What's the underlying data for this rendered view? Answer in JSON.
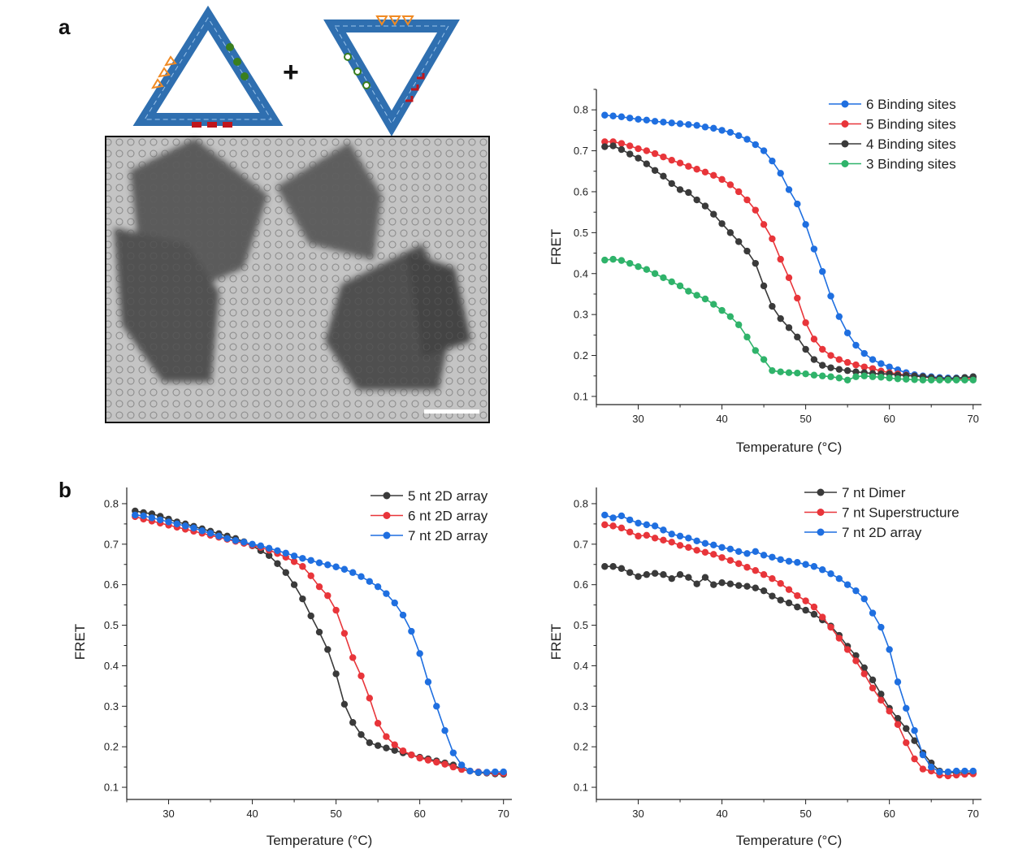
{
  "figure": {
    "panel_a_label": "a",
    "panel_b_label": "b",
    "plus_sign": "+"
  },
  "micrograph": {
    "has_scale_bar": true
  },
  "colors": {
    "blue": "#1f6fe0",
    "red": "#e8353a",
    "black": "#3a3a3a",
    "green": "#2fb36a",
    "origami_blue": "#2f6fb0",
    "origami_orange": "#f08a24",
    "origami_green": "#3a7f1e",
    "origami_red": "#c0161c"
  },
  "chart_data": [
    {
      "type": "line",
      "xlabel": "Temperature (°C)",
      "ylabel": "FRET",
      "xlim": [
        25,
        71
      ],
      "ylim": [
        0.08,
        0.85
      ],
      "xticks": [
        30,
        40,
        50,
        60,
        70
      ],
      "yticks": [
        0.1,
        0.2,
        0.3,
        0.4,
        0.5,
        0.6,
        0.7,
        0.8
      ],
      "legend_position": "top-right",
      "grid": false,
      "series": [
        {
          "name": "6 Binding sites",
          "color": "#1f6fe0",
          "x": [
            26,
            27,
            28,
            29,
            30,
            31,
            32,
            33,
            34,
            35,
            36,
            37,
            38,
            39,
            40,
            41,
            42,
            43,
            44,
            45,
            46,
            47,
            48,
            49,
            50,
            51,
            52,
            53,
            54,
            55,
            56,
            57,
            58,
            59,
            60,
            61,
            62,
            63,
            64,
            65,
            66,
            67,
            68,
            69,
            70
          ],
          "y": [
            0.787,
            0.785,
            0.783,
            0.78,
            0.777,
            0.775,
            0.772,
            0.77,
            0.768,
            0.766,
            0.764,
            0.762,
            0.758,
            0.755,
            0.75,
            0.745,
            0.737,
            0.728,
            0.715,
            0.7,
            0.675,
            0.645,
            0.605,
            0.57,
            0.52,
            0.46,
            0.405,
            0.345,
            0.295,
            0.255,
            0.225,
            0.205,
            0.19,
            0.18,
            0.172,
            0.165,
            0.158,
            0.153,
            0.15,
            0.148,
            0.146,
            0.145,
            0.145,
            0.146,
            0.148
          ]
        },
        {
          "name": "5 Binding sites",
          "color": "#e8353a",
          "x": [
            26,
            27,
            28,
            29,
            30,
            31,
            32,
            33,
            34,
            35,
            36,
            37,
            38,
            39,
            40,
            41,
            42,
            43,
            44,
            45,
            46,
            47,
            48,
            49,
            50,
            51,
            52,
            53,
            54,
            55,
            56,
            57,
            58,
            59,
            60,
            61,
            62,
            63,
            64,
            65,
            66,
            67,
            68,
            69,
            70
          ],
          "y": [
            0.722,
            0.722,
            0.718,
            0.712,
            0.705,
            0.7,
            0.693,
            0.685,
            0.677,
            0.67,
            0.662,
            0.655,
            0.648,
            0.64,
            0.63,
            0.617,
            0.6,
            0.58,
            0.555,
            0.52,
            0.485,
            0.435,
            0.39,
            0.34,
            0.28,
            0.24,
            0.215,
            0.2,
            0.19,
            0.183,
            0.177,
            0.172,
            0.168,
            0.162,
            0.158,
            0.155,
            0.152,
            0.15,
            0.148,
            0.145,
            0.143,
            0.142,
            0.143,
            0.144,
            0.143
          ]
        },
        {
          "name": "4 Binding sites",
          "color": "#3a3a3a",
          "x": [
            26,
            27,
            28,
            29,
            30,
            31,
            32,
            33,
            34,
            35,
            36,
            37,
            38,
            39,
            40,
            41,
            42,
            43,
            44,
            45,
            46,
            47,
            48,
            49,
            50,
            51,
            52,
            53,
            54,
            55,
            56,
            57,
            58,
            59,
            60,
            61,
            62,
            63,
            64,
            65,
            66,
            67,
            68,
            69,
            70
          ],
          "y": [
            0.71,
            0.712,
            0.703,
            0.692,
            0.682,
            0.668,
            0.652,
            0.638,
            0.62,
            0.605,
            0.598,
            0.58,
            0.565,
            0.545,
            0.522,
            0.5,
            0.478,
            0.455,
            0.425,
            0.37,
            0.32,
            0.29,
            0.268,
            0.245,
            0.215,
            0.19,
            0.176,
            0.17,
            0.166,
            0.163,
            0.16,
            0.158,
            0.156,
            0.155,
            0.155,
            0.152,
            0.151,
            0.15,
            0.148,
            0.146,
            0.144,
            0.143,
            0.144,
            0.146,
            0.148
          ]
        },
        {
          "name": "3 Binding sites",
          "color": "#2fb36a",
          "x": [
            26,
            27,
            28,
            29,
            30,
            31,
            32,
            33,
            34,
            35,
            36,
            37,
            38,
            39,
            40,
            41,
            42,
            43,
            44,
            45,
            46,
            47,
            48,
            49,
            50,
            51,
            52,
            53,
            54,
            55,
            56,
            57,
            58,
            59,
            60,
            61,
            62,
            63,
            64,
            65,
            66,
            67,
            68,
            69,
            70
          ],
          "y": [
            0.433,
            0.435,
            0.432,
            0.425,
            0.417,
            0.41,
            0.4,
            0.39,
            0.38,
            0.37,
            0.357,
            0.347,
            0.338,
            0.325,
            0.31,
            0.295,
            0.275,
            0.245,
            0.212,
            0.19,
            0.163,
            0.16,
            0.158,
            0.157,
            0.155,
            0.152,
            0.15,
            0.148,
            0.145,
            0.14,
            0.148,
            0.15,
            0.148,
            0.147,
            0.145,
            0.143,
            0.142,
            0.141,
            0.14,
            0.14,
            0.14,
            0.14,
            0.14,
            0.14,
            0.14
          ]
        }
      ]
    },
    {
      "type": "line",
      "xlabel": "Temperature (°C)",
      "ylabel": "FRET",
      "xlim": [
        25,
        71
      ],
      "ylim": [
        0.07,
        0.84
      ],
      "xticks": [
        30,
        40,
        50,
        60,
        70
      ],
      "yticks": [
        0.1,
        0.2,
        0.3,
        0.4,
        0.5,
        0.6,
        0.7,
        0.8
      ],
      "legend_position": "top-right",
      "grid": false,
      "series": [
        {
          "name": "5 nt 2D array",
          "color": "#3a3a3a",
          "x": [
            26,
            27,
            28,
            29,
            30,
            31,
            32,
            33,
            34,
            35,
            36,
            37,
            38,
            39,
            40,
            41,
            42,
            43,
            44,
            45,
            46,
            47,
            48,
            49,
            50,
            51,
            52,
            53,
            54,
            55,
            56,
            57,
            58,
            59,
            60,
            61,
            62,
            63,
            64,
            65,
            66,
            67,
            68,
            69,
            70
          ],
          "y": [
            0.782,
            0.778,
            0.775,
            0.769,
            0.762,
            0.755,
            0.75,
            0.744,
            0.738,
            0.732,
            0.726,
            0.72,
            0.714,
            0.706,
            0.696,
            0.684,
            0.672,
            0.652,
            0.63,
            0.6,
            0.565,
            0.523,
            0.483,
            0.44,
            0.38,
            0.305,
            0.26,
            0.23,
            0.21,
            0.203,
            0.197,
            0.191,
            0.185,
            0.18,
            0.174,
            0.17,
            0.165,
            0.16,
            0.155,
            0.145,
            0.14,
            0.136,
            0.135,
            0.133,
            0.132
          ]
        },
        {
          "name": "6 nt 2D array",
          "color": "#e8353a",
          "x": [
            26,
            27,
            28,
            29,
            30,
            31,
            32,
            33,
            34,
            35,
            36,
            37,
            38,
            39,
            40,
            41,
            42,
            43,
            44,
            45,
            46,
            47,
            48,
            49,
            50,
            51,
            52,
            53,
            54,
            55,
            56,
            57,
            58,
            59,
            60,
            61,
            62,
            63,
            64,
            65,
            66,
            67,
            68,
            69,
            70
          ],
          "y": [
            0.768,
            0.762,
            0.757,
            0.752,
            0.747,
            0.742,
            0.737,
            0.732,
            0.727,
            0.722,
            0.717,
            0.712,
            0.707,
            0.702,
            0.697,
            0.692,
            0.685,
            0.677,
            0.668,
            0.657,
            0.645,
            0.622,
            0.595,
            0.573,
            0.537,
            0.48,
            0.42,
            0.375,
            0.32,
            0.258,
            0.225,
            0.205,
            0.19,
            0.18,
            0.172,
            0.167,
            0.162,
            0.157,
            0.15,
            0.144,
            0.14,
            0.138,
            0.136,
            0.135,
            0.134
          ]
        },
        {
          "name": "7 nt 2D array",
          "color": "#1f6fe0",
          "x": [
            26,
            27,
            28,
            29,
            30,
            31,
            32,
            33,
            34,
            35,
            36,
            37,
            38,
            39,
            40,
            41,
            42,
            43,
            44,
            45,
            46,
            47,
            48,
            49,
            50,
            51,
            52,
            53,
            54,
            55,
            56,
            57,
            58,
            59,
            60,
            61,
            62,
            63,
            64,
            65,
            66,
            67,
            68,
            69,
            70
          ],
          "y": [
            0.772,
            0.77,
            0.765,
            0.76,
            0.755,
            0.75,
            0.745,
            0.74,
            0.733,
            0.727,
            0.72,
            0.714,
            0.709,
            0.705,
            0.7,
            0.696,
            0.69,
            0.684,
            0.678,
            0.671,
            0.665,
            0.66,
            0.654,
            0.649,
            0.644,
            0.638,
            0.63,
            0.62,
            0.608,
            0.595,
            0.578,
            0.555,
            0.525,
            0.485,
            0.43,
            0.36,
            0.3,
            0.24,
            0.185,
            0.155,
            0.14,
            0.137,
            0.137,
            0.138,
            0.138
          ]
        }
      ]
    },
    {
      "type": "line",
      "xlabel": "Temperature (°C)",
      "ylabel": "FRET",
      "xlim": [
        25,
        71
      ],
      "ylim": [
        0.07,
        0.84
      ],
      "xticks": [
        30,
        40,
        50,
        60,
        70
      ],
      "yticks": [
        0.1,
        0.2,
        0.3,
        0.4,
        0.5,
        0.6,
        0.7,
        0.8
      ],
      "legend_position": "top-right",
      "grid": false,
      "series": [
        {
          "name": "7 nt Dimer",
          "color": "#3a3a3a",
          "x": [
            26,
            27,
            28,
            29,
            30,
            31,
            32,
            33,
            34,
            35,
            36,
            37,
            38,
            39,
            40,
            41,
            42,
            43,
            44,
            45,
            46,
            47,
            48,
            49,
            50,
            51,
            52,
            53,
            54,
            55,
            56,
            57,
            58,
            59,
            60,
            61,
            62,
            63,
            64,
            65,
            66,
            67,
            68,
            69,
            70
          ],
          "y": [
            0.645,
            0.645,
            0.64,
            0.63,
            0.62,
            0.625,
            0.628,
            0.625,
            0.615,
            0.625,
            0.618,
            0.602,
            0.618,
            0.6,
            0.605,
            0.602,
            0.598,
            0.596,
            0.592,
            0.585,
            0.572,
            0.562,
            0.555,
            0.545,
            0.537,
            0.527,
            0.513,
            0.498,
            0.475,
            0.448,
            0.425,
            0.395,
            0.365,
            0.33,
            0.295,
            0.27,
            0.245,
            0.215,
            0.185,
            0.16,
            0.14,
            0.137,
            0.136,
            0.135,
            0.135
          ]
        },
        {
          "name": "7 nt Superstructure",
          "color": "#e8353a",
          "x": [
            26,
            27,
            28,
            29,
            30,
            31,
            32,
            33,
            34,
            35,
            36,
            37,
            38,
            39,
            40,
            41,
            42,
            43,
            44,
            45,
            46,
            47,
            48,
            49,
            50,
            51,
            52,
            53,
            54,
            55,
            56,
            57,
            58,
            59,
            60,
            61,
            62,
            63,
            64,
            65,
            66,
            67,
            68,
            69,
            70
          ],
          "y": [
            0.748,
            0.745,
            0.74,
            0.73,
            0.72,
            0.722,
            0.715,
            0.71,
            0.705,
            0.697,
            0.692,
            0.685,
            0.68,
            0.675,
            0.667,
            0.66,
            0.652,
            0.643,
            0.635,
            0.625,
            0.615,
            0.603,
            0.588,
            0.573,
            0.56,
            0.545,
            0.52,
            0.495,
            0.468,
            0.44,
            0.412,
            0.38,
            0.345,
            0.315,
            0.288,
            0.255,
            0.21,
            0.17,
            0.145,
            0.14,
            0.13,
            0.128,
            0.13,
            0.132,
            0.133
          ]
        },
        {
          "name": "7 nt 2D array",
          "color": "#1f6fe0",
          "x": [
            26,
            27,
            28,
            29,
            30,
            31,
            32,
            33,
            34,
            35,
            36,
            37,
            38,
            39,
            40,
            41,
            42,
            43,
            44,
            45,
            46,
            47,
            48,
            49,
            50,
            51,
            52,
            53,
            54,
            55,
            56,
            57,
            58,
            59,
            60,
            61,
            62,
            63,
            64,
            65,
            66,
            67,
            68,
            69,
            70
          ],
          "y": [
            0.772,
            0.765,
            0.77,
            0.76,
            0.752,
            0.748,
            0.745,
            0.735,
            0.725,
            0.72,
            0.715,
            0.708,
            0.702,
            0.698,
            0.692,
            0.688,
            0.682,
            0.677,
            0.682,
            0.673,
            0.668,
            0.662,
            0.658,
            0.655,
            0.65,
            0.645,
            0.637,
            0.627,
            0.615,
            0.6,
            0.585,
            0.565,
            0.53,
            0.495,
            0.44,
            0.36,
            0.295,
            0.24,
            0.18,
            0.15,
            0.138,
            0.138,
            0.14,
            0.14,
            0.14
          ]
        }
      ]
    }
  ]
}
